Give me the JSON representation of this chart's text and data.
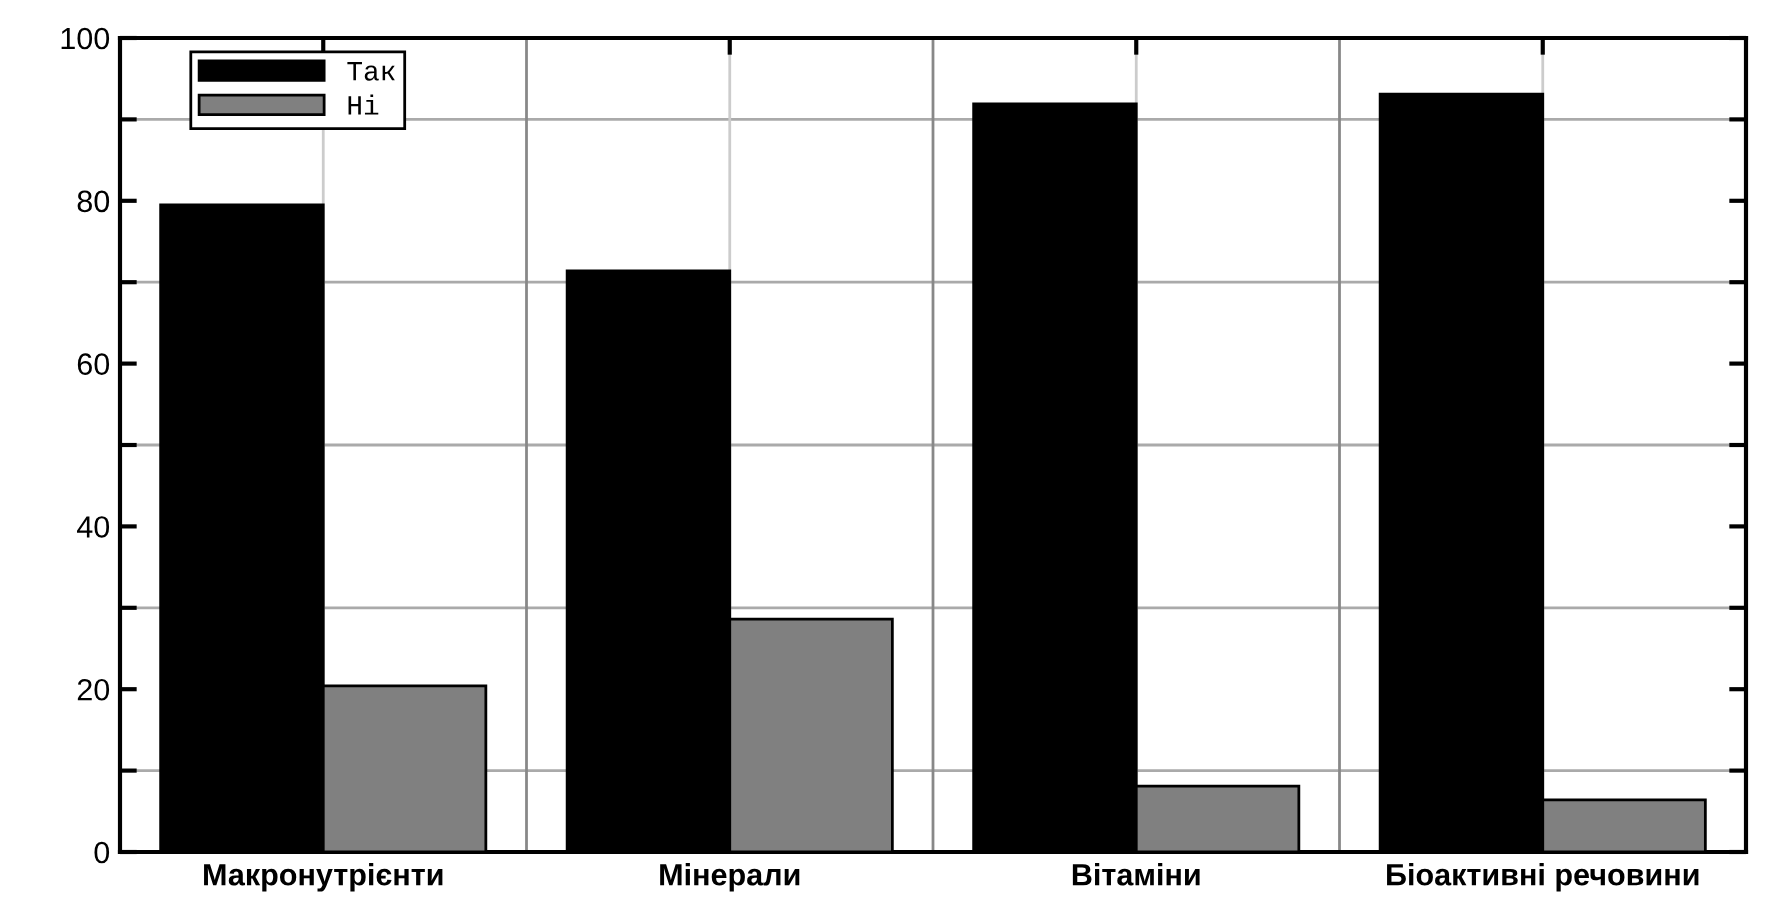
{
  "chart_data": {
    "type": "bar",
    "categories": [
      "Макронутрієнти",
      "Мінерали",
      "Вітаміни",
      "Біоактивні речовини"
    ],
    "series": [
      {
        "name": "Так",
        "color": "#000000",
        "values": [
          79.5,
          71.4,
          91.9,
          93.1
        ]
      },
      {
        "name": "Ні",
        "color": "#808080",
        "values": [
          20.4,
          28.6,
          8.1,
          6.4
        ]
      }
    ],
    "ylim": [
      0,
      100
    ],
    "yticks": [
      0,
      {
        "value": 10,
        "label": null
      },
      20,
      {
        "value": 30,
        "label": null
      },
      40,
      {
        "value": 50,
        "label": null
      },
      60,
      {
        "value": 70,
        "label": null
      },
      80,
      {
        "value": 90,
        "label": null
      },
      100
    ],
    "grid": true,
    "legend": "top left"
  }
}
